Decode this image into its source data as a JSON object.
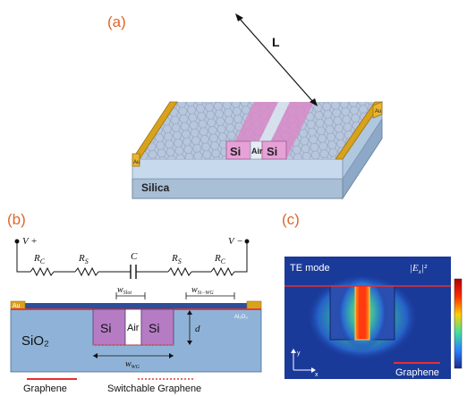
{
  "panel_a": {
    "label": "(a)",
    "length_label": "L",
    "si_left": "Si",
    "air": "Air",
    "si_right": "Si",
    "substrate": "Silica",
    "au_left": "Au",
    "au_right": "Au"
  },
  "panel_b": {
    "label": "(b)",
    "v_plus": "V +",
    "v_minus": "V −",
    "rc_left": "R",
    "rc_left_sub": "C",
    "rs_left": "R",
    "rs_left_sub": "S",
    "cap": "C",
    "rs_right": "R",
    "rs_right_sub": "S",
    "rc_right": "R",
    "rc_right_sub": "C",
    "w_slot": "w",
    "w_slot_sub": "Slot",
    "w_si_wg": "w",
    "w_si_wg_sub": "Si−WG",
    "au": "Au",
    "al2o3": "Al₂O₃",
    "si_left": "Si",
    "air": "Air",
    "si_right": "Si",
    "d": "d",
    "sio2": "SiO₂",
    "w_wg": "w",
    "w_wg_sub": "WG",
    "legend_graphene": "Graphene",
    "legend_switchable": "Switchable Graphene"
  },
  "panel_c": {
    "label": "(c)",
    "mode": "TE mode",
    "field": "|E",
    "field_sub": "x",
    "field_sup": "|²",
    "axis_y": "y",
    "axis_x": "x",
    "graphene": "Graphene"
  },
  "colors": {
    "accent_label": "#e0662a",
    "gold": "#d9a21c",
    "si_pink": "#d98ac8",
    "graphene_red": "#e53030",
    "switchable_red": "#d93a3a",
    "sio2_blue": "#8fb3d8",
    "field_bg": "#1a3a9a"
  }
}
